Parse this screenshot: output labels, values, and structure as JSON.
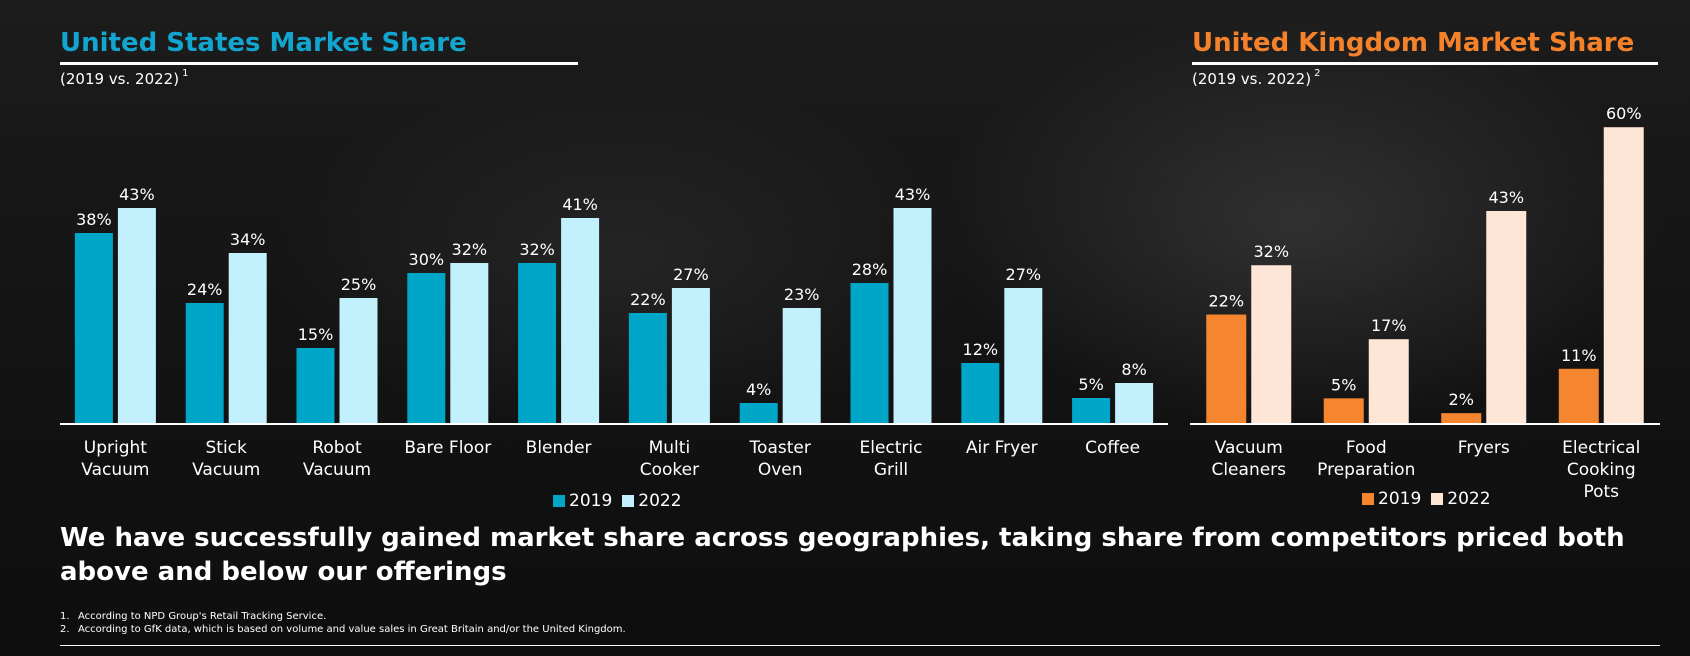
{
  "us": {
    "title": "United States Market Share",
    "subtitle": "(2019 vs. 2022)",
    "footnote_ref": "1"
  },
  "uk": {
    "title": "United Kingdom Market Share",
    "subtitle": "(2019 vs. 2022)",
    "footnote_ref": "2"
  },
  "headline": "We have successfully gained market share across geographies, taking share from competitors priced both above and below our offerings",
  "footnotes": [
    {
      "num": "1.",
      "text": "According to NPD Group's Retail Tracking Service."
    },
    {
      "num": "2.",
      "text": "According to GfK data, which is based on volume and value sales in Great Britain and/or the United Kingdom."
    }
  ],
  "chart_data": [
    {
      "type": "bar",
      "title": "United States Market Share",
      "subtitle": "(2019 vs. 2022)",
      "categories": [
        [
          "Upright",
          "Vacuum"
        ],
        [
          "Stick",
          "Vacuum"
        ],
        [
          "Robot",
          "Vacuum"
        ],
        [
          "Bare Floor"
        ],
        [
          "Blender"
        ],
        [
          "Multi",
          "Cooker"
        ],
        [
          "Toaster",
          "Oven"
        ],
        [
          "Electric",
          "Grill"
        ],
        [
          "Air Fryer"
        ],
        [
          "Coffee"
        ]
      ],
      "series": [
        {
          "name": "2019",
          "color": "#00a6c8",
          "values": [
            38,
            24,
            15,
            30,
            32,
            22,
            4,
            28,
            12,
            5
          ]
        },
        {
          "name": "2022",
          "color": "#c2f1fd",
          "values": [
            43,
            34,
            25,
            32,
            41,
            27,
            23,
            43,
            27,
            8
          ]
        }
      ],
      "value_format": "percent",
      "ylim": [
        0,
        45
      ],
      "grid": false,
      "legend_position": "bottom-center"
    },
    {
      "type": "bar",
      "title": "United Kingdom Market Share",
      "subtitle": "(2019 vs. 2022)",
      "categories": [
        [
          "Vacuum",
          "Cleaners"
        ],
        [
          "Food",
          "Preparation"
        ],
        [
          "Fryers"
        ],
        [
          "Electrical",
          "Cooking",
          "Pots"
        ]
      ],
      "series": [
        {
          "name": "2019",
          "color": "#f5852f",
          "values": [
            22,
            5,
            2,
            11
          ]
        },
        {
          "name": "2022",
          "color": "#fde6d5",
          "values": [
            32,
            17,
            43,
            60
          ]
        }
      ],
      "value_format": "percent",
      "ylim": [
        0,
        60
      ],
      "grid": false,
      "legend_position": "bottom-center"
    }
  ]
}
